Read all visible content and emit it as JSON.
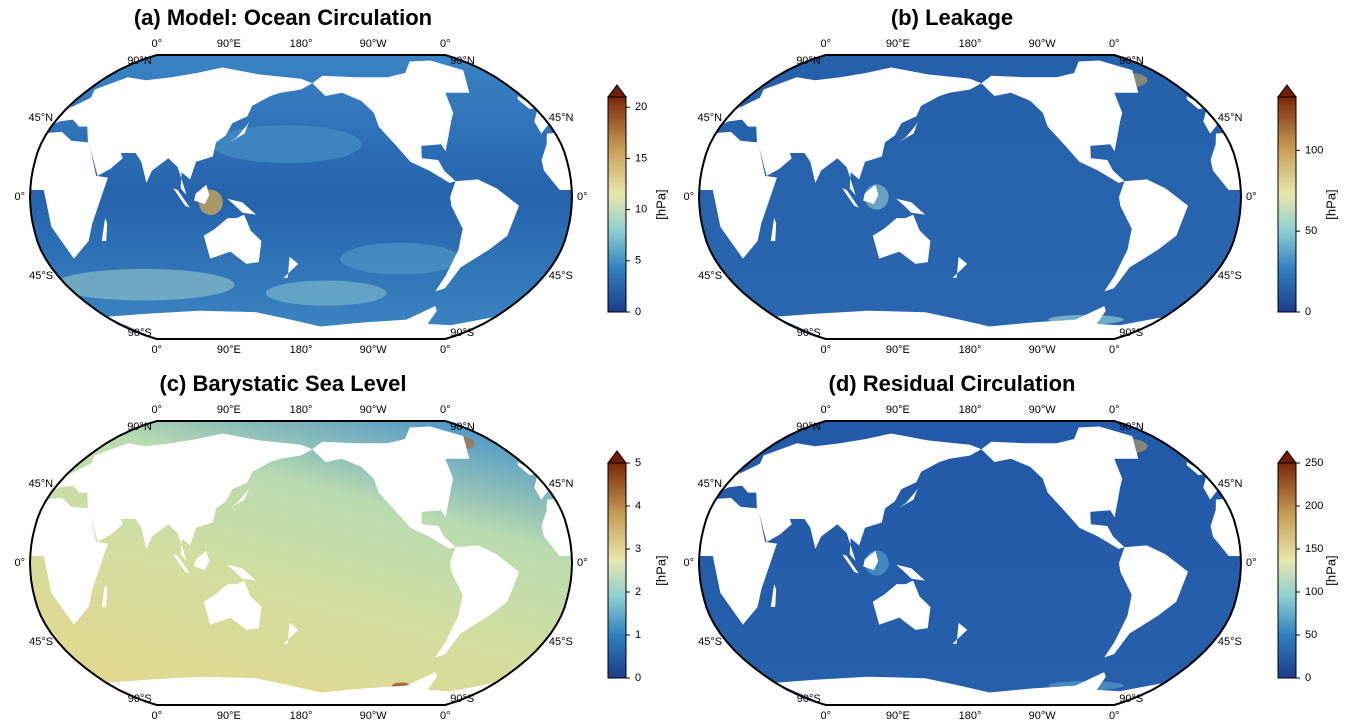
{
  "panels": [
    {
      "title": "(a) Model: Ocean Circulation",
      "colorbar": {
        "label": "[hPa]",
        "lim": [
          0,
          21
        ],
        "ticks": [
          0,
          5,
          10,
          15,
          20
        ]
      }
    },
    {
      "title": "(b) Leakage",
      "colorbar": {
        "label": "[hPa]",
        "lim": [
          0,
          133
        ],
        "ticks": [
          0,
          50,
          100
        ]
      }
    },
    {
      "title": "(c) Barystatic Sea Level",
      "colorbar": {
        "label": "[hPa]",
        "lim": [
          0,
          5
        ],
        "ticks": [
          0,
          1,
          2,
          3,
          4,
          5
        ]
      }
    },
    {
      "title": "(d) Residual Circulation",
      "colorbar": {
        "label": "[hPa]",
        "lim": [
          0,
          250
        ],
        "ticks": [
          0,
          50,
          100,
          150,
          200,
          250
        ]
      }
    }
  ],
  "lon_ticks": [
    {
      "value": 0,
      "label": "0°"
    },
    {
      "value": 90,
      "label": "90°E"
    },
    {
      "value": 180,
      "label": "180°"
    },
    {
      "value": 270,
      "label": "90°W"
    },
    {
      "value": 360,
      "label": "0°"
    }
  ],
  "lat_ticks": [
    {
      "value": 90,
      "label": "90°N"
    },
    {
      "value": 45,
      "label": "45°N"
    },
    {
      "value": 0,
      "label": "0°"
    },
    {
      "value": -45,
      "label": "45°S"
    },
    {
      "value": -90,
      "label": "90°S"
    }
  ]
}
